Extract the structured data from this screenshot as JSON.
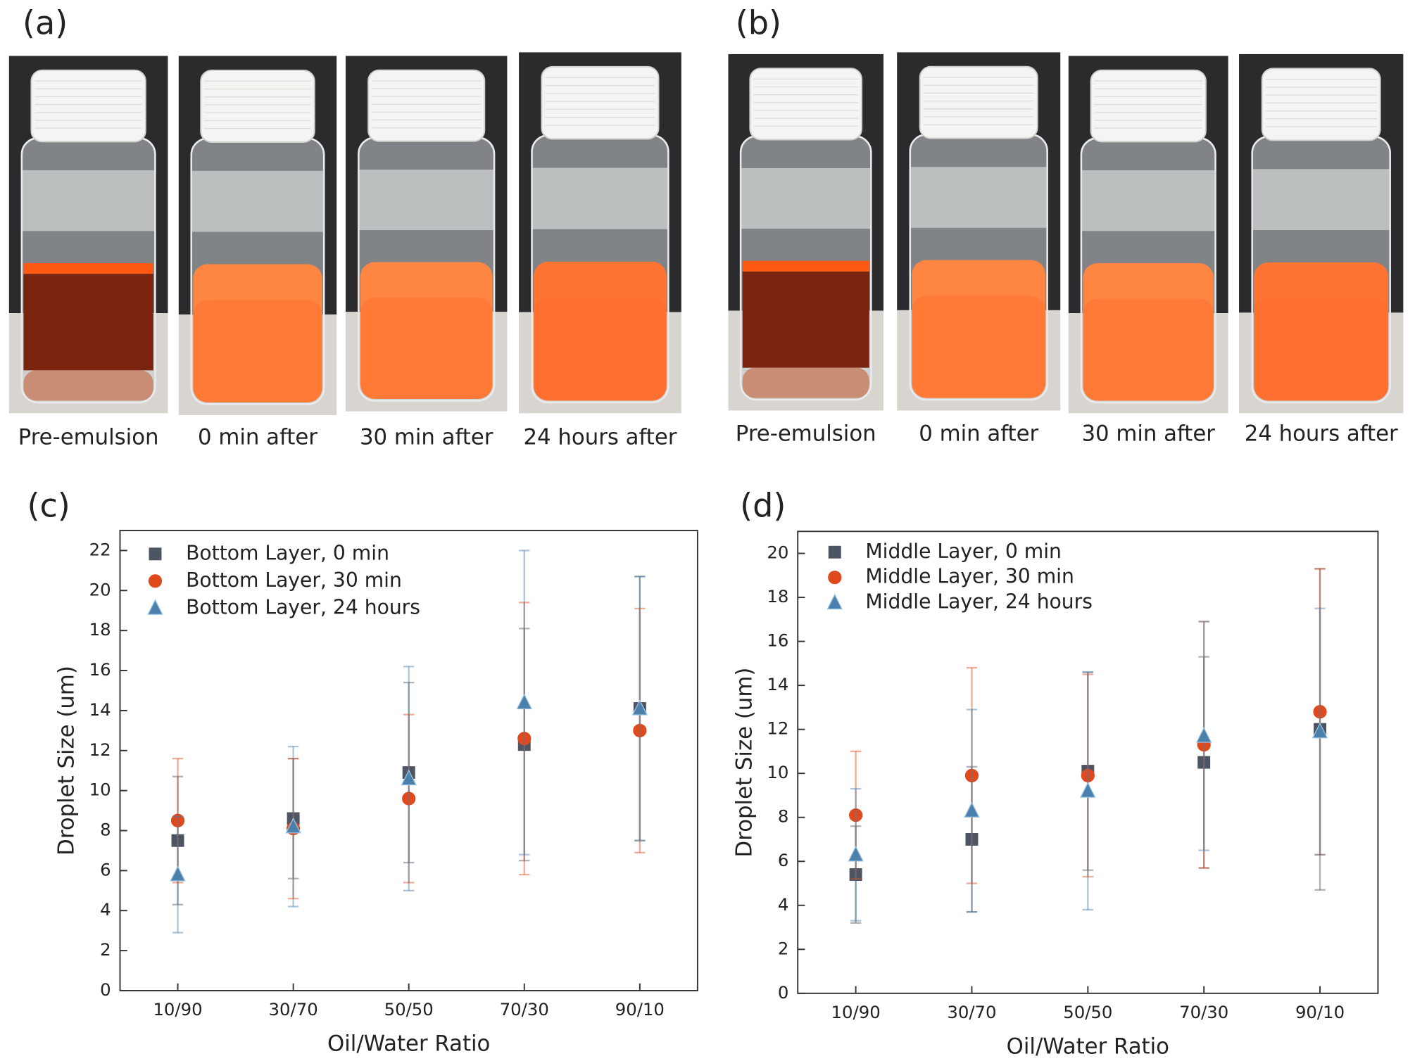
{
  "photos": [
    {
      "panel": "(a)",
      "captions": [
        "Pre-emulsion",
        "0 min after",
        "30 min after",
        "24 hours after"
      ]
    },
    {
      "panel": "(b)",
      "captions": [
        "Pre-emulsion",
        "0 min after",
        "30 min after",
        "24 hours after"
      ]
    }
  ],
  "chart_data": [
    {
      "type": "scatter",
      "panel": "(c)",
      "x_label": "Oil/Water Ratio",
      "y_label": "Droplet Size (um)",
      "categories": [
        "10/90",
        "30/70",
        "50/50",
        "70/30",
        "90/10"
      ],
      "ylim": [
        0,
        23
      ],
      "yticks": [
        0,
        2,
        4,
        6,
        8,
        10,
        12,
        14,
        16,
        18,
        20,
        22
      ],
      "legend": "upper left",
      "series": [
        {
          "name": "Bottom Layer, 0 min",
          "color": "#4d5562",
          "marker": "square",
          "values": [
            7.5,
            8.6,
            10.9,
            12.3,
            14.1
          ],
          "errors": [
            3.2,
            3.0,
            4.5,
            5.8,
            6.6
          ]
        },
        {
          "name": "Bottom Layer, 30 min",
          "color": "#e0491b",
          "marker": "circle",
          "values": [
            8.5,
            8.1,
            9.6,
            12.6,
            13.0
          ],
          "errors": [
            3.1,
            3.5,
            4.2,
            6.8,
            6.1
          ]
        },
        {
          "name": "Bottom Layer, 24 hours",
          "color": "#4b7fac",
          "marker": "triangle",
          "values": [
            5.8,
            8.2,
            10.6,
            14.4,
            14.1
          ],
          "errors": [
            2.9,
            4.0,
            5.6,
            7.6,
            6.6
          ]
        }
      ]
    },
    {
      "type": "scatter",
      "panel": "(d)",
      "x_label": "Oil/Water Ratio",
      "y_label": "Droplet Size (um)",
      "categories": [
        "10/90",
        "30/70",
        "50/50",
        "70/30",
        "90/10"
      ],
      "ylim": [
        0,
        21
      ],
      "yticks": [
        0,
        2,
        4,
        6,
        8,
        10,
        12,
        14,
        16,
        18,
        20
      ],
      "legend": "upper left",
      "series": [
        {
          "name": "Middle Layer, 0 min",
          "color": "#4d5562",
          "marker": "square",
          "values": [
            5.4,
            7.0,
            10.1,
            10.5,
            12.0
          ],
          "errors": [
            2.2,
            3.3,
            4.5,
            4.8,
            7.3
          ]
        },
        {
          "name": "Middle Layer, 30 min",
          "color": "#e0491b",
          "marker": "circle",
          "values": [
            8.1,
            9.9,
            9.9,
            11.3,
            12.8
          ],
          "errors": [
            2.9,
            4.9,
            4.6,
            5.6,
            6.5
          ]
        },
        {
          "name": "Middle Layer, 24 hours",
          "color": "#4b7fac",
          "marker": "triangle",
          "values": [
            6.3,
            8.3,
            9.2,
            11.7,
            11.9
          ],
          "errors": [
            3.0,
            4.6,
            5.4,
            5.2,
            5.6
          ]
        }
      ]
    }
  ]
}
